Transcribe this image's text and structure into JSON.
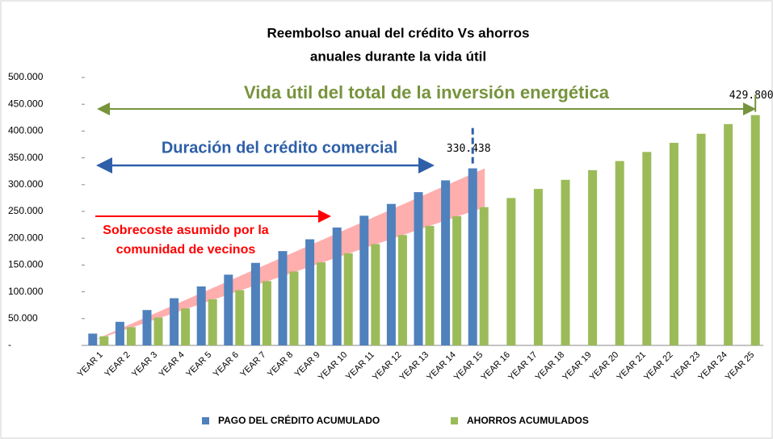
{
  "chart_data": {
    "type": "bar",
    "title": [
      "Reembolso anual del crédito Vs ahorros",
      "anuales durante la vida útil"
    ],
    "categories": [
      "YEAR 1",
      "YEAR 2",
      "YEAR 3",
      "YEAR 4",
      "YEAR 5",
      "YEAR 6",
      "YEAR 7",
      "YEAR 8",
      "YEAR 9",
      "YEAR 10",
      "YEAR 11",
      "YEAR 12",
      "YEAR 13",
      "YEAR 14",
      "YEAR 15",
      "YEAR 16",
      "YEAR 17",
      "YEAR 18",
      "YEAR 19",
      "YEAR 20",
      "YEAR 21",
      "YEAR 22",
      "YEAR 23",
      "YEAR 24",
      "YEAR 25"
    ],
    "series": [
      {
        "name": "PAGO DEL CRÉDITO ACUMULADO",
        "color": "#4f81bd",
        "values": [
          22000,
          44000,
          66000,
          88000,
          110000,
          132000,
          154000,
          176000,
          198000,
          220000,
          242000,
          264000,
          286000,
          308000,
          330438,
          null,
          null,
          null,
          null,
          null,
          null,
          null,
          null,
          null,
          null
        ],
        "value_labels": [
          null,
          null,
          null,
          null,
          null,
          null,
          null,
          null,
          null,
          null,
          null,
          null,
          null,
          null,
          "330.438",
          null,
          null,
          null,
          null,
          null,
          null,
          null,
          null,
          null,
          null
        ]
      },
      {
        "name": "AHORROS ACUMULADOS",
        "color": "#9bbb59",
        "values": [
          17000,
          34000,
          52000,
          69000,
          86000,
          103000,
          120000,
          138000,
          155000,
          172000,
          189000,
          206000,
          223000,
          241000,
          258000,
          275000,
          292000,
          309000,
          327000,
          344000,
          361000,
          378000,
          395000,
          413000,
          429800
        ],
        "value_labels": [
          null,
          null,
          null,
          null,
          null,
          null,
          null,
          null,
          null,
          null,
          null,
          null,
          null,
          null,
          null,
          null,
          null,
          null,
          null,
          null,
          null,
          null,
          null,
          null,
          "429.800"
        ]
      }
    ],
    "ylim": [
      0,
      500000
    ],
    "yticks": [
      {
        "value": 0,
        "label": "-"
      },
      {
        "value": 50000,
        "label": "50.000"
      },
      {
        "value": 100000,
        "label": "100.000"
      },
      {
        "value": 150000,
        "label": "150.000"
      },
      {
        "value": 200000,
        "label": "200.000"
      },
      {
        "value": 250000,
        "label": "250.000"
      },
      {
        "value": 300000,
        "label": "300.000"
      },
      {
        "value": 350000,
        "label": "350.000"
      },
      {
        "value": 400000,
        "label": "400.000"
      },
      {
        "value": 450000,
        "label": "450.000"
      },
      {
        "value": 500000,
        "label": "500.000"
      }
    ],
    "grid": false,
    "legend": "bottom",
    "annotations": [
      {
        "text": "Vida útil del total de la inversión energética",
        "color": "#77933c"
      },
      {
        "text": "Duración del crédito comercial",
        "color": "#2e5fa8"
      },
      {
        "lines": [
          "Sobrecoste asumido por la",
          "comunidad de vecinos"
        ],
        "color": "#ff0000"
      }
    ]
  }
}
